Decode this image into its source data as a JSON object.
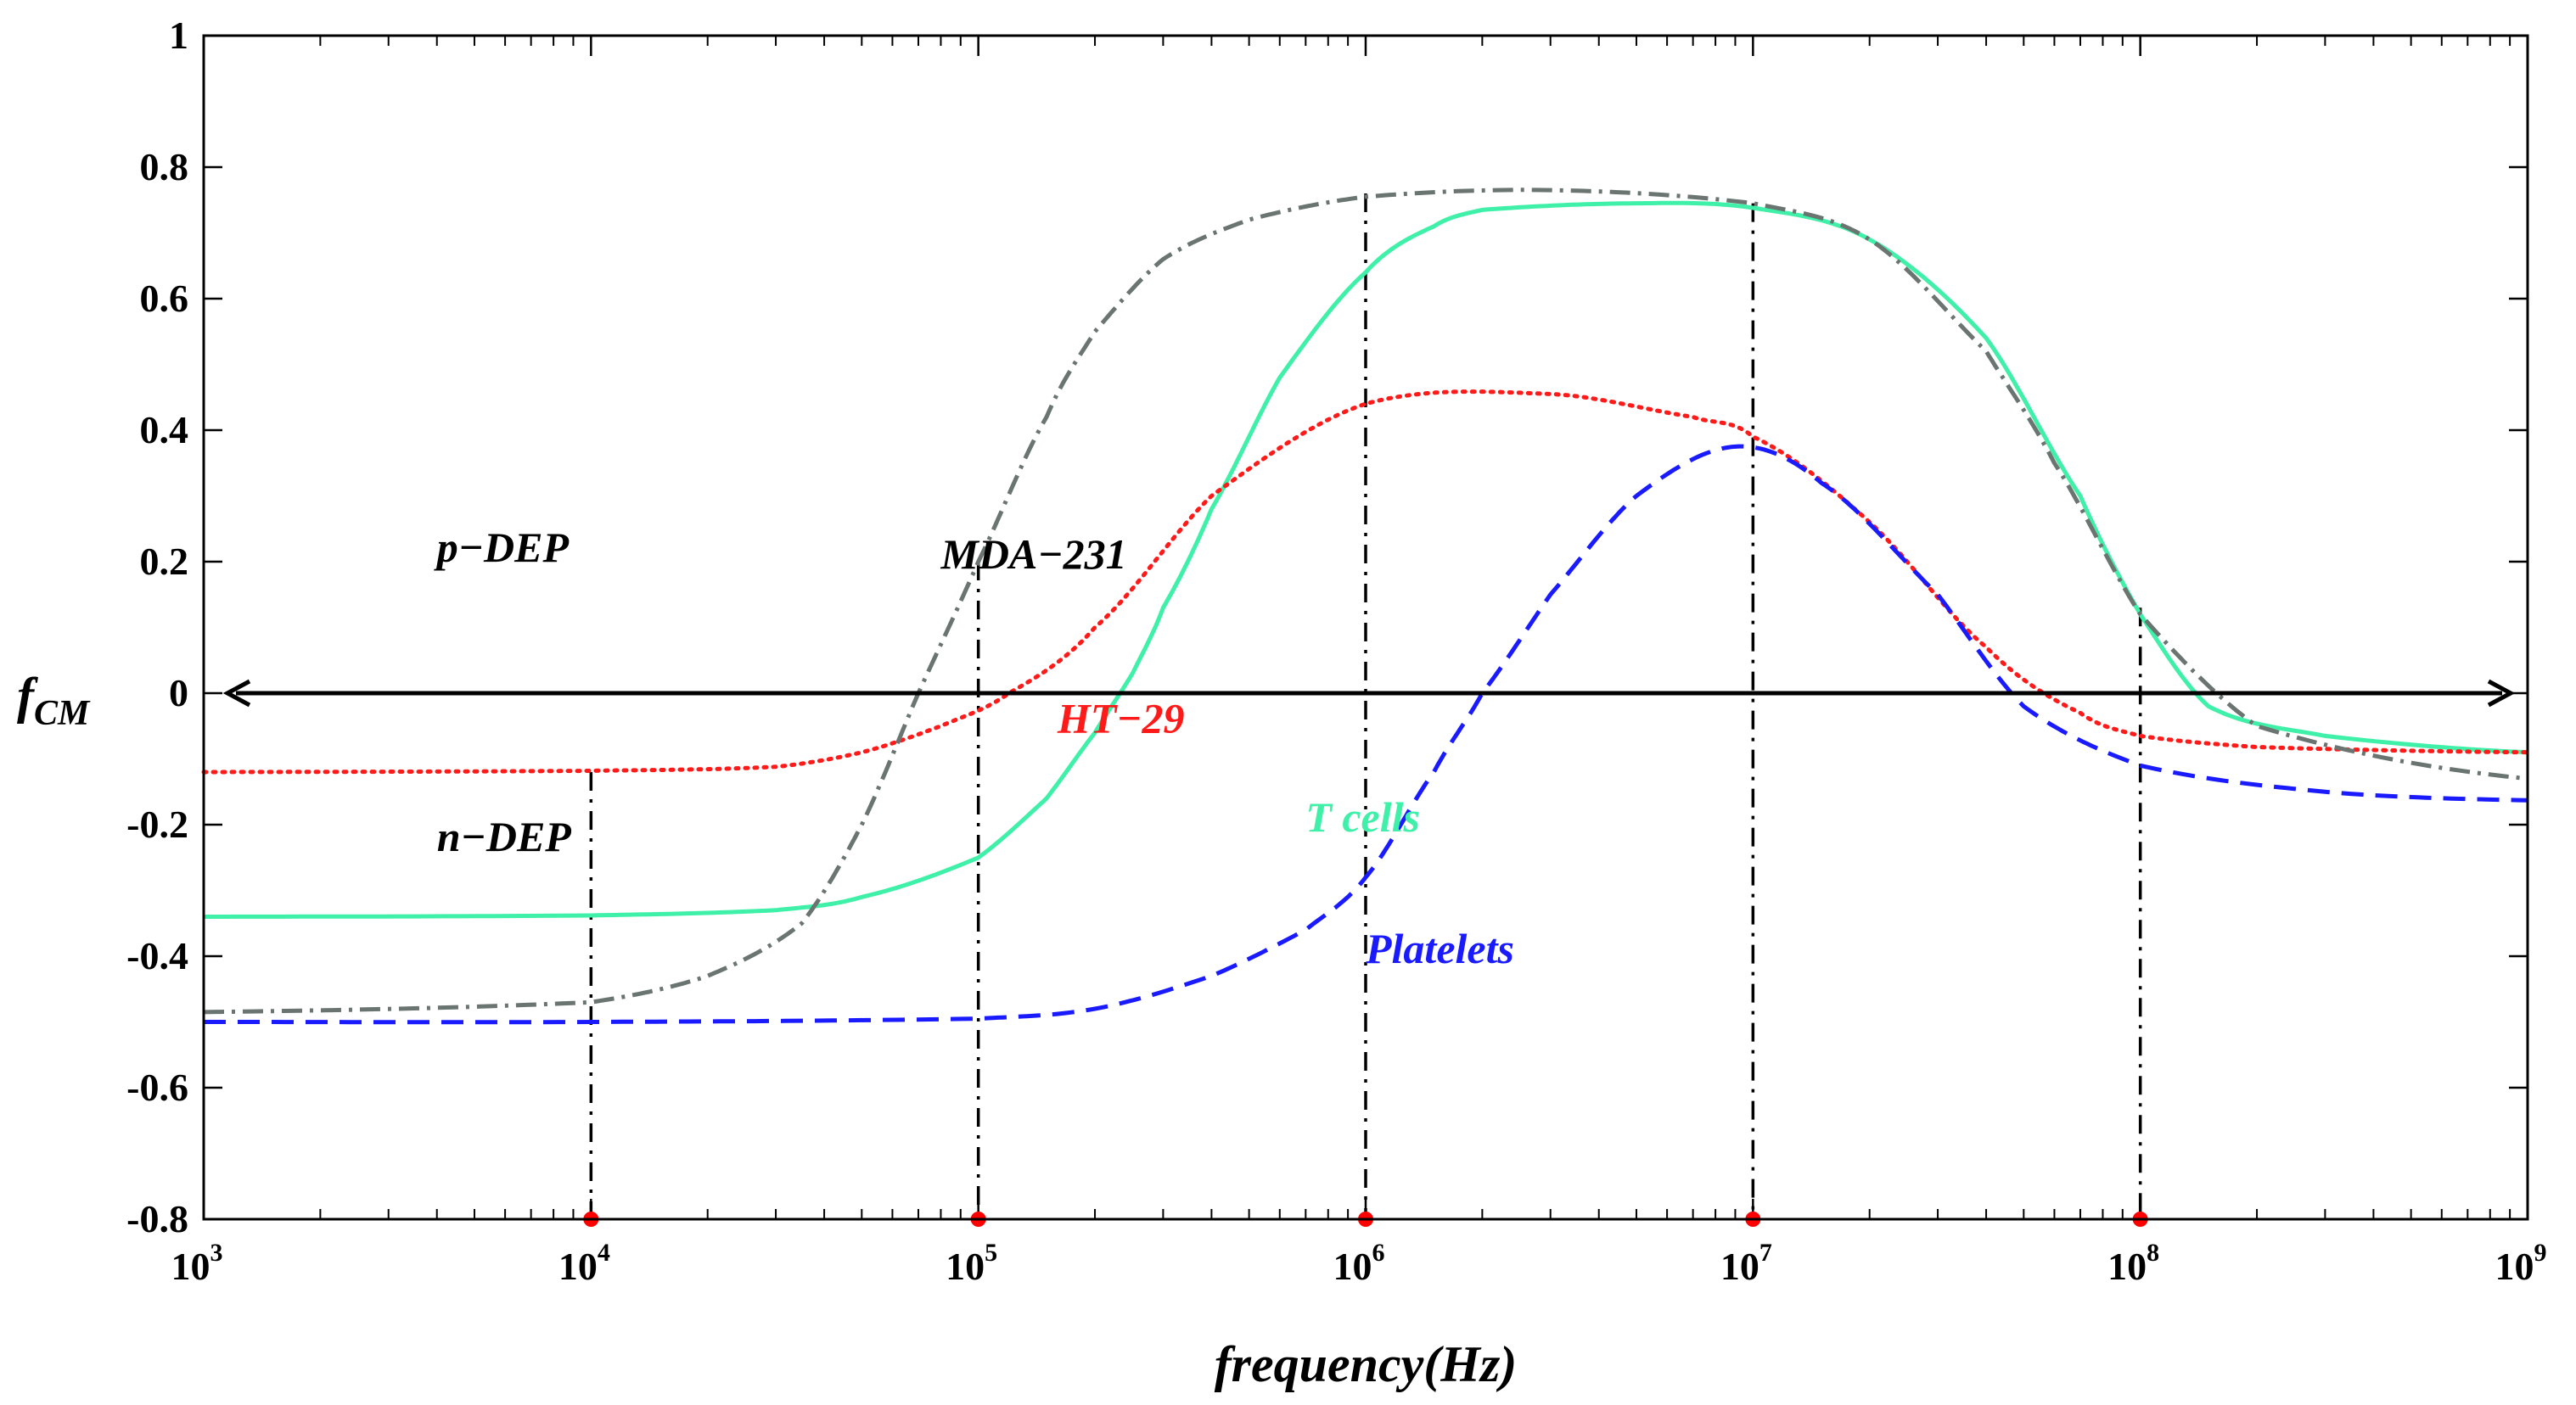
{
  "chart_data": {
    "type": "line",
    "title": "",
    "xlabel": "frequency(Hz)",
    "ylabel_main": "f",
    "ylabel_sub": "CM",
    "xscale": "log",
    "xlim": [
      1000,
      1000000000
    ],
    "ylim": [
      -0.8,
      1
    ],
    "grid": false,
    "x_ticks": [
      {
        "value": 1000,
        "base": "10",
        "exp": "3"
      },
      {
        "value": 10000,
        "base": "10",
        "exp": "4"
      },
      {
        "value": 100000,
        "base": "10",
        "exp": "5"
      },
      {
        "value": 1000000,
        "base": "10",
        "exp": "6"
      },
      {
        "value": 10000000,
        "base": "10",
        "exp": "7"
      },
      {
        "value": 100000000,
        "base": "10",
        "exp": "8"
      },
      {
        "value": 1000000000,
        "base": "10",
        "exp": "9"
      }
    ],
    "y_ticks": [
      {
        "value": 1,
        "label": "1"
      },
      {
        "value": 0.8,
        "label": "0.8"
      },
      {
        "value": 0.6,
        "label": "0.6"
      },
      {
        "value": 0.4,
        "label": "0.4"
      },
      {
        "value": 0.2,
        "label": "0.2"
      },
      {
        "value": 0,
        "label": "0"
      },
      {
        "value": -0.2,
        "label": "-0.2"
      },
      {
        "value": -0.4,
        "label": "-0.4"
      },
      {
        "value": -0.6,
        "label": "-0.6"
      },
      {
        "value": -0.8,
        "label": "-0.8"
      }
    ],
    "series": [
      {
        "name": "T cells",
        "color": "#3ef0a8",
        "style": "solid",
        "x": [
          1000,
          10000,
          30000,
          50000,
          100000,
          150000,
          200000,
          250000,
          300000,
          400000,
          600000,
          1000000,
          1500000,
          2000000,
          5000000,
          10000000,
          20000000,
          40000000,
          70000000,
          100000000,
          150000000,
          300000000,
          1000000000
        ],
        "y": [
          -0.34,
          -0.338,
          -0.33,
          -0.31,
          -0.25,
          -0.16,
          -0.06,
          0.03,
          0.13,
          0.28,
          0.48,
          0.64,
          0.71,
          0.735,
          0.745,
          0.738,
          0.69,
          0.54,
          0.3,
          0.12,
          -0.02,
          -0.065,
          -0.09
        ]
      },
      {
        "name": "HT-29",
        "color": "#ff1a1a",
        "style": "dotted",
        "x": [
          1000,
          10000,
          30000,
          50000,
          80000,
          120000,
          200000,
          400000,
          1000000,
          3000000,
          7000000,
          10000000,
          20000000,
          40000000,
          70000000,
          100000000,
          200000000,
          1000000000
        ],
        "y": [
          -0.12,
          -0.118,
          -0.112,
          -0.09,
          -0.05,
          0.0,
          0.1,
          0.3,
          0.44,
          0.455,
          0.42,
          0.39,
          0.26,
          0.07,
          -0.03,
          -0.065,
          -0.082,
          -0.09
        ]
      },
      {
        "name": "Platelets",
        "color": "#1a1aff",
        "style": "dashed",
        "x": [
          1000,
          10000,
          100000,
          200000,
          400000,
          700000,
          1000000,
          1500000,
          2000000,
          3000000,
          5000000,
          9000000,
          15000000,
          30000000,
          50000000,
          100000000,
          300000000,
          1000000000
        ],
        "y": [
          -0.5,
          -0.5,
          -0.495,
          -0.48,
          -0.43,
          -0.36,
          -0.28,
          -0.12,
          0.0,
          0.15,
          0.3,
          0.375,
          0.32,
          0.15,
          -0.02,
          -0.11,
          -0.15,
          -0.163
        ]
      },
      {
        "name": "MDA-231",
        "color": "#6a7470",
        "style": "dashdot",
        "x": [
          1000,
          10000,
          20000,
          35000,
          50000,
          70000,
          100000,
          150000,
          200000,
          300000,
          500000,
          1000000,
          3000000,
          10000000,
          20000000,
          40000000,
          60000000,
          100000000,
          200000000,
          1000000000
        ],
        "y": [
          -0.485,
          -0.47,
          -0.43,
          -0.35,
          -0.2,
          0.0,
          0.2,
          0.42,
          0.55,
          0.66,
          0.72,
          0.755,
          0.765,
          0.745,
          0.69,
          0.52,
          0.35,
          0.12,
          -0.05,
          -0.13
        ]
      }
    ],
    "vertical_markers": [
      {
        "x": 10000,
        "y_top": -0.12
      },
      {
        "x": 100000,
        "y_top": 0.2
      },
      {
        "x": 1000000,
        "y_top": 0.76
      },
      {
        "x": 10000000,
        "y_top": 0.745
      },
      {
        "x": 100000000,
        "y_top": 0.13
      }
    ],
    "zero_arrow": {
      "y": 0
    },
    "annotations": [
      {
        "text": "p−DEP",
        "x": 4000,
        "y": 0.2,
        "color": "#000000"
      },
      {
        "text": "n−DEP",
        "x": 4000,
        "y": -0.24,
        "color": "#000000"
      },
      {
        "text": "MDA−231",
        "x": 80000,
        "y": 0.19,
        "color": "#000000"
      },
      {
        "text": "HT−29",
        "x": 160000,
        "y": -0.06,
        "color": "#ff1a1a"
      },
      {
        "text": "T cells",
        "x": 700000,
        "y": -0.21,
        "color": "#3ef0a8"
      },
      {
        "text": "Platelets",
        "x": 1000000,
        "y": -0.41,
        "color": "#1a1aff"
      }
    ]
  }
}
